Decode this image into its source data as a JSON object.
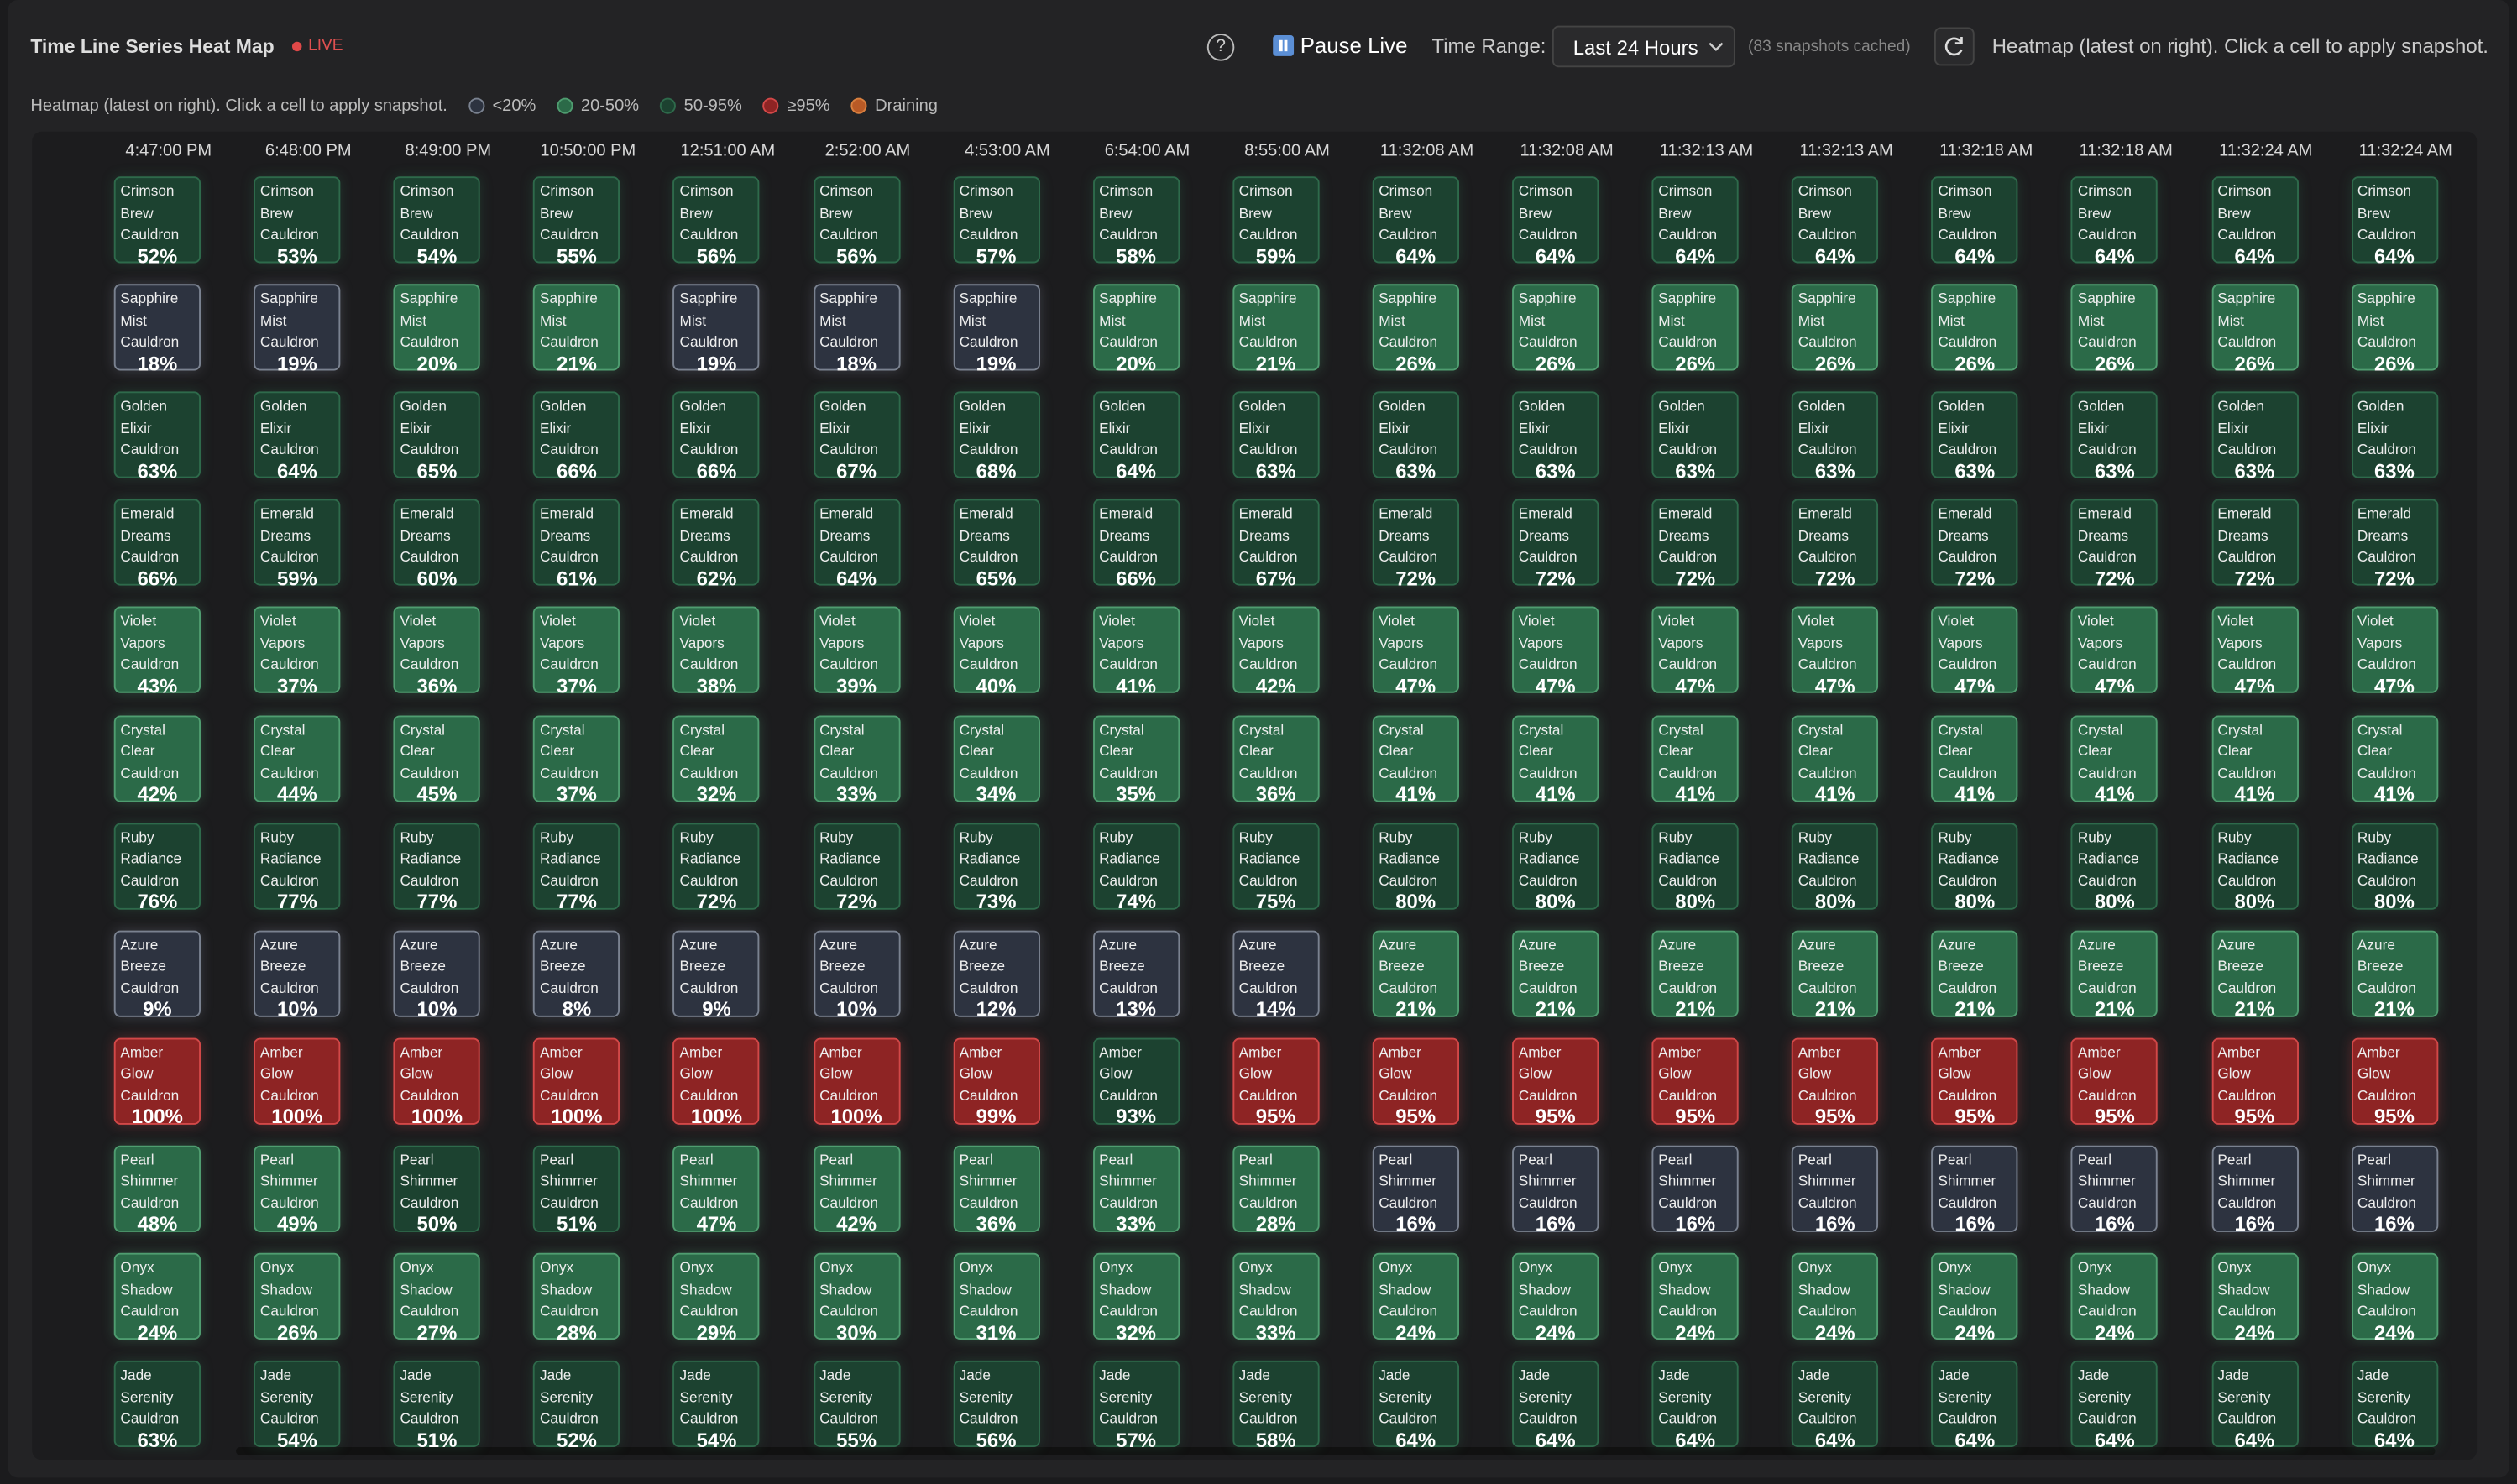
{
  "header": {
    "title": "Time Line Series Heat Map",
    "live": "LIVE",
    "help": "?",
    "pause": "Pause Live",
    "time_range_label": "Time Range:",
    "time_range_value": "Last 24 Hours",
    "cached": "(83 snapshots cached)",
    "hint": "Heatmap (latest on right). Click a cell to apply snapshot."
  },
  "legend": {
    "hint": "Heatmap (latest on right). Click a cell to apply snapshot.",
    "items": [
      {
        "label": "<20%",
        "color": "#2d3340",
        "border": "#7a8290",
        "below": 20
      },
      {
        "label": "20-50%",
        "color": "#2b6a48",
        "border": "#4f9d70",
        "from": 20,
        "to": 50
      },
      {
        "label": "50-95%",
        "color": "#1c4230",
        "border": "#2e6a4b",
        "from": 50,
        "to": 95
      },
      {
        "label": "≥95%",
        "color": "#8e2424",
        "border": "#d24848",
        "from": 95
      },
      {
        "label": "Draining",
        "color": "#b95a26",
        "border": "#d9803f"
      }
    ]
  },
  "heatmap": {
    "columns": [
      "4:47:00 PM",
      "6:48:00 PM",
      "8:49:00 PM",
      "10:50:00 PM",
      "12:51:00 AM",
      "2:52:00 AM",
      "4:53:00 AM",
      "6:54:00 AM",
      "8:55:00 AM",
      "11:32:08 AM",
      "11:32:08 AM",
      "11:32:13 AM",
      "11:32:13 AM",
      "11:32:18 AM",
      "11:32:18 AM",
      "11:32:24 AM",
      "11:32:24 AM"
    ],
    "rows": [
      {
        "name": "Crimson Brew Cauldron",
        "values": [
          52,
          53,
          54,
          55,
          56,
          56,
          57,
          58,
          59,
          64,
          64,
          64,
          64,
          64,
          64,
          64,
          64
        ],
        "value_labels": [
          "52%",
          "53%",
          "54%",
          "55%",
          "56%",
          "56%",
          "57%",
          "58%",
          "59%",
          "64%",
          "64%",
          "64%",
          "64%",
          "64%",
          "64%",
          "64%",
          "64%"
        ]
      },
      {
        "name": "Sapphire Mist Cauldron",
        "values": [
          18,
          19,
          20,
          21,
          19,
          18,
          19,
          20,
          21,
          26,
          26,
          26,
          26,
          26,
          26,
          26,
          26
        ],
        "value_labels": [
          "18%",
          "19%",
          "20%",
          "21%",
          "19%",
          "18%",
          "19%",
          "20%",
          "21%",
          "26%",
          "26%",
          "26%",
          "26%",
          "26%",
          "26%",
          "26%",
          "26%"
        ]
      },
      {
        "name": "Golden Elixir Cauldron",
        "values": [
          63,
          64,
          65,
          66,
          66,
          67,
          68,
          64,
          63,
          63,
          63,
          63,
          63,
          63,
          63,
          63,
          63
        ],
        "value_labels": [
          "63%",
          "64%",
          "65%",
          "66%",
          "66%",
          "67%",
          "68%",
          "64%",
          "63%",
          "63%",
          "63%",
          "63%",
          "63%",
          "63%",
          "63%",
          "63%",
          "63%"
        ]
      },
      {
        "name": "Emerald Dreams Cauldron",
        "values": [
          66,
          59,
          60,
          61,
          62,
          64,
          65,
          66,
          67,
          72,
          72,
          72,
          72,
          72,
          72,
          72,
          72
        ],
        "value_labels": [
          "66%",
          "59%",
          "60%",
          "61%",
          "62%",
          "64%",
          "65%",
          "66%",
          "67%",
          "72%",
          "72%",
          "72%",
          "72%",
          "72%",
          "72%",
          "72%",
          "72%"
        ]
      },
      {
        "name": "Violet Vapors Cauldron",
        "values": [
          43,
          37,
          36,
          37,
          38,
          39,
          40,
          41,
          42,
          47,
          47,
          47,
          47,
          47,
          47,
          47,
          47
        ],
        "value_labels": [
          "43%",
          "37%",
          "36%",
          "37%",
          "38%",
          "39%",
          "40%",
          "41%",
          "42%",
          "47%",
          "47%",
          "47%",
          "47%",
          "47%",
          "47%",
          "47%",
          "47%"
        ]
      },
      {
        "name": "Crystal Clear Cauldron",
        "values": [
          42,
          44,
          45,
          37,
          32,
          33,
          34,
          35,
          36,
          41,
          41,
          41,
          41,
          41,
          41,
          41,
          41
        ],
        "value_labels": [
          "42%",
          "44%",
          "45%",
          "37%",
          "32%",
          "33%",
          "34%",
          "35%",
          "36%",
          "41%",
          "41%",
          "41%",
          "41%",
          "41%",
          "41%",
          "41%",
          "41%"
        ]
      },
      {
        "name": "Ruby Radiance Cauldron",
        "values": [
          76,
          77,
          77,
          77,
          72,
          72,
          73,
          74,
          75,
          80,
          80,
          80,
          80,
          80,
          80,
          80,
          80
        ],
        "value_labels": [
          "76%",
          "77%",
          "77%",
          "77%",
          "72%",
          "72%",
          "73%",
          "74%",
          "75%",
          "80%",
          "80%",
          "80%",
          "80%",
          "80%",
          "80%",
          "80%",
          "80%"
        ]
      },
      {
        "name": "Azure Breeze Cauldron",
        "values": [
          9,
          10,
          10,
          8,
          9,
          10,
          12,
          13,
          14,
          21,
          21,
          21,
          21,
          21,
          21,
          21,
          21
        ],
        "value_labels": [
          "9%",
          "10%",
          "10%",
          "8%",
          "9%",
          "10%",
          "12%",
          "13%",
          "14%",
          "21%",
          "21%",
          "21%",
          "21%",
          "21%",
          "21%",
          "21%",
          "21%"
        ]
      },
      {
        "name": "Amber Glow Cauldron",
        "values": [
          100,
          100,
          100,
          100,
          100,
          100,
          99,
          93,
          95,
          95,
          95,
          95,
          95,
          95,
          95,
          95,
          95
        ],
        "value_labels": [
          "100%",
          "100%",
          "100%",
          "100%",
          "100%",
          "100%",
          "99%",
          "93%",
          "95%",
          "95%",
          "95%",
          "95%",
          "95%",
          "95%",
          "95%",
          "95%",
          "95%"
        ]
      },
      {
        "name": "Pearl Shimmer Cauldron",
        "values": [
          48,
          49,
          50,
          51,
          47,
          42,
          36,
          33,
          28,
          16,
          16,
          16,
          16,
          16,
          16,
          16,
          16
        ],
        "value_labels": [
          "48%",
          "49%",
          "50%",
          "51%",
          "47%",
          "42%",
          "36%",
          "33%",
          "28%",
          "16%",
          "16%",
          "16%",
          "16%",
          "16%",
          "16%",
          "16%",
          "16%"
        ]
      },
      {
        "name": "Onyx Shadow Cauldron",
        "values": [
          24,
          26,
          27,
          28,
          29,
          30,
          31,
          32,
          33,
          24,
          24,
          24,
          24,
          24,
          24,
          24,
          24
        ],
        "value_labels": [
          "24%",
          "26%",
          "27%",
          "28%",
          "29%",
          "30%",
          "31%",
          "32%",
          "33%",
          "24%",
          "24%",
          "24%",
          "24%",
          "24%",
          "24%",
          "24%",
          "24%"
        ]
      },
      {
        "name": "Jade Serenity Cauldron",
        "values": [
          63,
          54,
          51,
          52,
          54,
          55,
          56,
          57,
          58,
          64,
          64,
          64,
          64,
          64,
          64,
          64,
          64
        ],
        "value_labels": [
          "63%",
          "54%",
          "51%",
          "52%",
          "54%",
          "55%",
          "56%",
          "57%",
          "58%",
          "64%",
          "64%",
          "64%",
          "64%",
          "64%",
          "64%",
          "64%",
          "64%"
        ]
      }
    ]
  }
}
